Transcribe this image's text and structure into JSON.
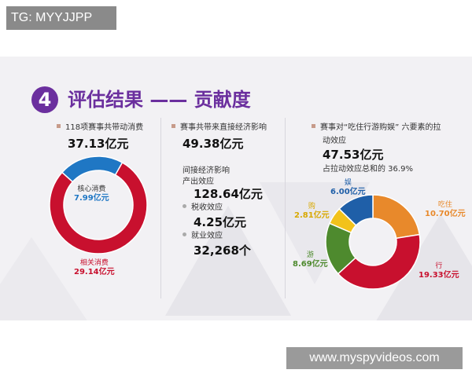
{
  "overlay": {
    "top_tag": "TG: MYYJJPP",
    "bottom_watermark": "www.myspyvideos.com"
  },
  "header": {
    "section_number": "4",
    "title": "评估结果 —— 贡献度"
  },
  "col1": {
    "caption": "118项赛事共带动消费",
    "total": "37.13亿元",
    "donut_labels": {
      "core_name": "核心消费",
      "core_value": "7.99亿元",
      "related_name": "相关消费",
      "related_value": "29.14亿元"
    },
    "colors": {
      "core": "#1f77c4",
      "related": "#c8102e"
    }
  },
  "col2": {
    "caption": "赛事共带来直接经济影响",
    "direct": "49.38亿元",
    "indirect_heading": "间接经济影响",
    "output_label": "产出效应",
    "output_value": "128.64亿元",
    "tax_label": "税收效应",
    "tax_value": "4.25亿元",
    "jobs_label": "就业效应",
    "jobs_value": "32,268个"
  },
  "col3": {
    "caption_line1": "赛事对“吃住行游购娱” 六要素的拉",
    "caption_line2": "动效应",
    "total": "47.53亿元",
    "share_line": "占拉动效应总和的 36.9%",
    "segments": [
      {
        "name": "吃住",
        "value": "10.70亿元",
        "color": "#e8892b"
      },
      {
        "name": "行",
        "value": "19.33亿元",
        "color": "#c8102e"
      },
      {
        "name": "游",
        "value": "8.69亿元",
        "color": "#4e8a2e"
      },
      {
        "name": "购",
        "value": "2.81亿元",
        "color": "#f2c21b"
      },
      {
        "name": "娱",
        "value": "6.00亿元",
        "color": "#1f5fa8"
      }
    ]
  },
  "chart_data": [
    {
      "type": "pie",
      "categories": [
        "核心消费",
        "相关消费"
      ],
      "values": [
        7.99,
        29.14
      ]
    },
    {
      "type": "pie",
      "categories": [
        "吃住",
        "行",
        "游",
        "购",
        "娱"
      ],
      "values": [
        10.7,
        19.33,
        8.69,
        2.81,
        6.0
      ]
    }
  ]
}
